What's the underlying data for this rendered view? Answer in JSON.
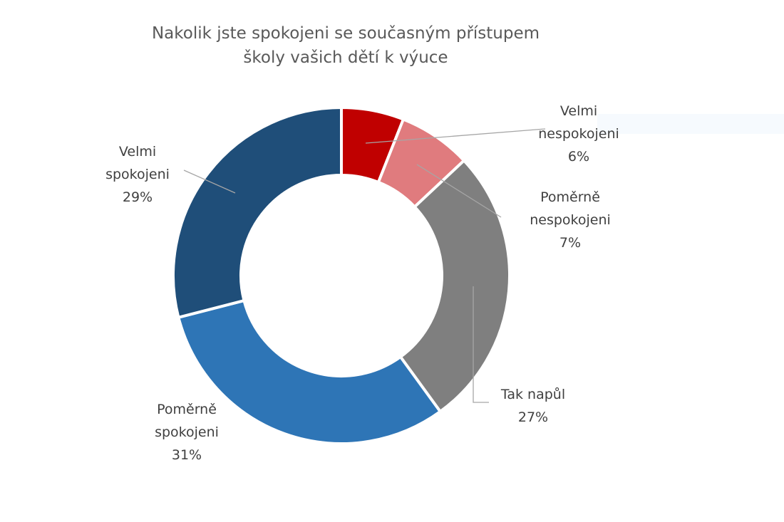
{
  "chart_data": {
    "type": "pie",
    "donut": true,
    "title_lines": [
      "Nakolik jste spokojeni se současným přístupem",
      "školy vašich dětí k výuce"
    ],
    "slices": [
      {
        "label_lines": [
          "Velmi",
          "nespokojeni"
        ],
        "value_label": "6%",
        "value": 6,
        "color": "#c00000"
      },
      {
        "label_lines": [
          "Poměrně",
          "nespokojeni"
        ],
        "value_label": "7%",
        "value": 7,
        "color": "#e07b7e"
      },
      {
        "label_lines": [
          "Tak napůl"
        ],
        "value_label": "27%",
        "value": 27,
        "color": "#7f7f7f"
      },
      {
        "label_lines": [
          "Poměrně",
          "spokojeni"
        ],
        "value_label": "31%",
        "value": 31,
        "color": "#2e75b6"
      },
      {
        "label_lines": [
          "Velmi",
          "spokojeni"
        ],
        "value_label": "29%",
        "value": 29,
        "color": "#1f4e79"
      }
    ],
    "leader_line_color": "#a6a6a6",
    "legend": "none"
  }
}
